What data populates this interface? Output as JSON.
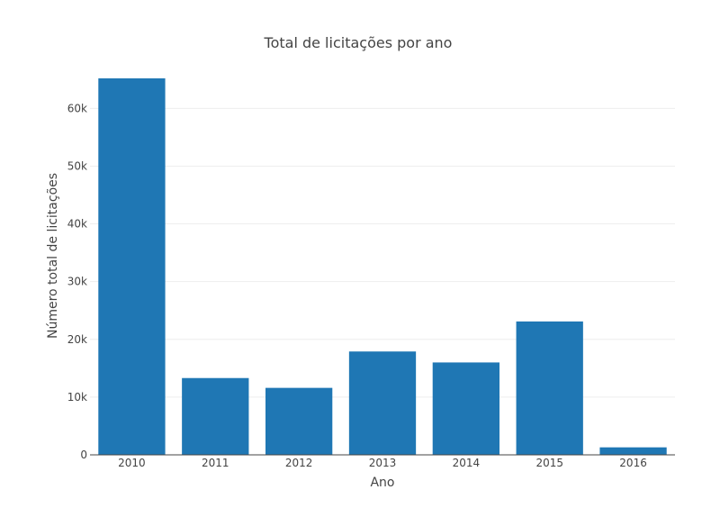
{
  "chart_data": {
    "type": "bar",
    "title": "Total de licitações por ano",
    "xlabel": "Ano",
    "ylabel": "Número total de licitações",
    "categories": [
      "2010",
      "2011",
      "2012",
      "2013",
      "2014",
      "2015",
      "2016"
    ],
    "values": [
      65200,
      13300,
      11600,
      17900,
      16000,
      23100,
      1300
    ],
    "ylim": [
      0,
      65200
    ],
    "yticks": [
      0,
      10000,
      20000,
      30000,
      40000,
      50000,
      60000
    ],
    "ytick_labels": [
      "0",
      "10k",
      "20k",
      "30k",
      "40k",
      "50k",
      "60k"
    ],
    "grid": true,
    "bar_color": "#1f77b4"
  }
}
